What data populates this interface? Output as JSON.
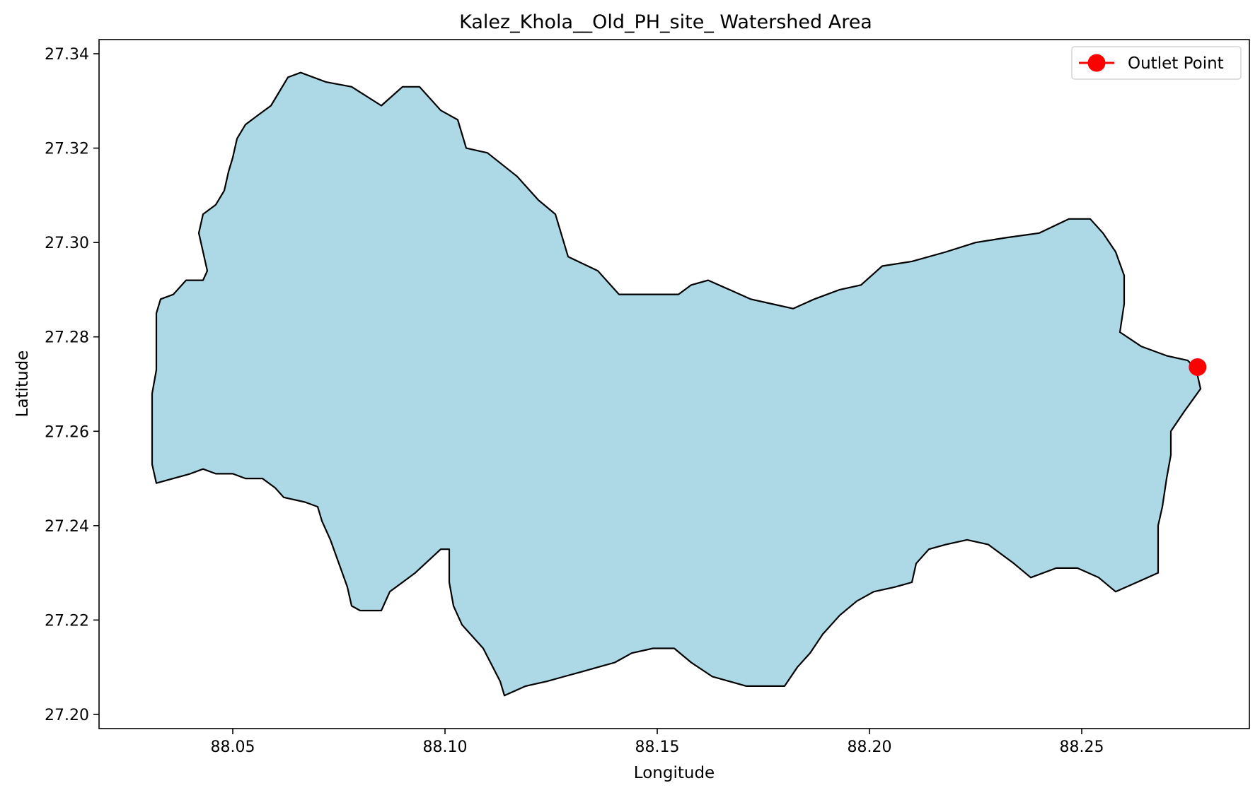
{
  "chart_data": {
    "type": "map",
    "title": "Kalez_Khola__Old_PH_site_ Watershed Area",
    "xlabel": "Longitude",
    "ylabel": "Latitude",
    "xlim": [
      88.0185,
      88.2895
    ],
    "ylim": [
      27.197,
      27.343
    ],
    "xticks": [
      88.05,
      88.1,
      88.15,
      88.2,
      88.25
    ],
    "xtick_labels": [
      "88.05",
      "88.10",
      "88.15",
      "88.20",
      "88.25"
    ],
    "yticks": [
      27.2,
      27.22,
      27.24,
      27.26,
      27.28,
      27.3,
      27.32,
      27.34
    ],
    "ytick_labels": [
      "27.20",
      "27.22",
      "27.24",
      "27.26",
      "27.28",
      "27.30",
      "27.32",
      "27.34"
    ],
    "grid": false,
    "legend_position": "top-right",
    "legend": [
      {
        "label": "Outlet Point",
        "color": "#ff0000",
        "marker": "circle"
      }
    ],
    "watershed": {
      "fill": "#add8e6",
      "edge": "#000000",
      "boundary": [
        [
          88.066,
          27.336
        ],
        [
          88.072,
          27.334
        ],
        [
          88.078,
          27.333
        ],
        [
          88.085,
          27.329
        ],
        [
          88.09,
          27.333
        ],
        [
          88.094,
          27.333
        ],
        [
          88.099,
          27.328
        ],
        [
          88.103,
          27.326
        ],
        [
          88.105,
          27.32
        ],
        [
          88.11,
          27.319
        ],
        [
          88.117,
          27.314
        ],
        [
          88.122,
          27.309
        ],
        [
          88.126,
          27.306
        ],
        [
          88.129,
          27.297
        ],
        [
          88.136,
          27.294
        ],
        [
          88.141,
          27.289
        ],
        [
          88.15,
          27.289
        ],
        [
          88.155,
          27.289
        ],
        [
          88.158,
          27.291
        ],
        [
          88.162,
          27.292
        ],
        [
          88.167,
          27.29
        ],
        [
          88.172,
          27.288
        ],
        [
          88.177,
          27.287
        ],
        [
          88.182,
          27.286
        ],
        [
          88.187,
          27.288
        ],
        [
          88.193,
          27.29
        ],
        [
          88.198,
          27.291
        ],
        [
          88.203,
          27.295
        ],
        [
          88.21,
          27.296
        ],
        [
          88.218,
          27.298
        ],
        [
          88.225,
          27.3
        ],
        [
          88.232,
          27.301
        ],
        [
          88.24,
          27.302
        ],
        [
          88.247,
          27.305
        ],
        [
          88.252,
          27.305
        ],
        [
          88.255,
          27.302
        ],
        [
          88.258,
          27.298
        ],
        [
          88.26,
          27.293
        ],
        [
          88.26,
          27.287
        ],
        [
          88.259,
          27.281
        ],
        [
          88.264,
          27.278
        ],
        [
          88.27,
          27.276
        ],
        [
          88.275,
          27.275
        ],
        [
          88.277,
          27.273
        ],
        [
          88.278,
          27.269
        ],
        [
          88.274,
          27.264
        ],
        [
          88.271,
          27.26
        ],
        [
          88.271,
          27.255
        ],
        [
          88.27,
          27.25
        ],
        [
          88.269,
          27.244
        ],
        [
          88.268,
          27.24
        ],
        [
          88.268,
          27.235
        ],
        [
          88.268,
          27.23
        ],
        [
          88.263,
          27.228
        ],
        [
          88.258,
          27.226
        ],
        [
          88.254,
          27.229
        ],
        [
          88.249,
          27.231
        ],
        [
          88.244,
          27.231
        ],
        [
          88.238,
          27.229
        ],
        [
          88.234,
          27.232
        ],
        [
          88.228,
          27.236
        ],
        [
          88.223,
          27.237
        ],
        [
          88.218,
          27.236
        ],
        [
          88.214,
          27.235
        ],
        [
          88.211,
          27.232
        ],
        [
          88.21,
          27.228
        ],
        [
          88.206,
          27.227
        ],
        [
          88.201,
          27.226
        ],
        [
          88.197,
          27.224
        ],
        [
          88.193,
          27.221
        ],
        [
          88.189,
          27.217
        ],
        [
          88.186,
          27.213
        ],
        [
          88.183,
          27.21
        ],
        [
          88.18,
          27.206
        ],
        [
          88.176,
          27.206
        ],
        [
          88.171,
          27.206
        ],
        [
          88.167,
          27.207
        ],
        [
          88.163,
          27.208
        ],
        [
          88.158,
          27.211
        ],
        [
          88.154,
          27.214
        ],
        [
          88.149,
          27.214
        ],
        [
          88.144,
          27.213
        ],
        [
          88.14,
          27.211
        ],
        [
          88.136,
          27.21
        ],
        [
          88.132,
          27.209
        ],
        [
          88.128,
          27.208
        ],
        [
          88.124,
          27.207
        ],
        [
          88.119,
          27.206
        ],
        [
          88.114,
          27.204
        ],
        [
          88.113,
          27.207
        ],
        [
          88.109,
          27.214
        ],
        [
          88.104,
          27.219
        ],
        [
          88.102,
          27.223
        ],
        [
          88.101,
          27.228
        ],
        [
          88.101,
          27.235
        ],
        [
          88.099,
          27.235
        ],
        [
          88.093,
          27.23
        ],
        [
          88.09,
          27.228
        ],
        [
          88.087,
          27.226
        ],
        [
          88.085,
          27.222
        ],
        [
          88.08,
          27.222
        ],
        [
          88.078,
          27.223
        ],
        [
          88.077,
          27.227
        ],
        [
          88.075,
          27.232
        ],
        [
          88.073,
          27.237
        ],
        [
          88.071,
          27.241
        ],
        [
          88.07,
          27.244
        ],
        [
          88.067,
          27.245
        ],
        [
          88.062,
          27.246
        ],
        [
          88.06,
          27.248
        ],
        [
          88.057,
          27.25
        ],
        [
          88.053,
          27.25
        ],
        [
          88.05,
          27.251
        ],
        [
          88.046,
          27.251
        ],
        [
          88.043,
          27.252
        ],
        [
          88.04,
          27.251
        ],
        [
          88.036,
          27.25
        ],
        [
          88.032,
          27.249
        ],
        [
          88.031,
          27.253
        ],
        [
          88.031,
          27.257
        ],
        [
          88.031,
          27.262
        ],
        [
          88.031,
          27.268
        ],
        [
          88.032,
          27.273
        ],
        [
          88.032,
          27.279
        ],
        [
          88.032,
          27.285
        ],
        [
          88.033,
          27.288
        ],
        [
          88.036,
          27.289
        ],
        [
          88.039,
          27.292
        ],
        [
          88.043,
          27.292
        ],
        [
          88.044,
          27.294
        ],
        [
          88.043,
          27.298
        ],
        [
          88.042,
          27.302
        ],
        [
          88.043,
          27.306
        ],
        [
          88.046,
          27.308
        ],
        [
          88.048,
          27.311
        ],
        [
          88.049,
          27.315
        ],
        [
          88.05,
          27.318
        ],
        [
          88.051,
          27.322
        ],
        [
          88.053,
          27.325
        ],
        [
          88.056,
          27.327
        ],
        [
          88.059,
          27.329
        ],
        [
          88.061,
          27.332
        ],
        [
          88.063,
          27.335
        ],
        [
          88.066,
          27.336
        ]
      ]
    },
    "outlet_point": {
      "label": "Outlet Point",
      "x": 88.2773,
      "y": 27.2736,
      "color": "#ff0000"
    }
  }
}
